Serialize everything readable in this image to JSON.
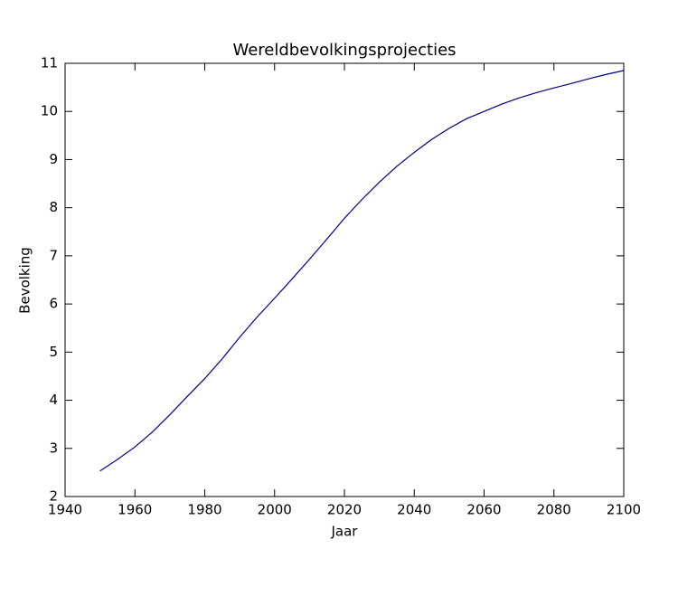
{
  "chart_data": {
    "type": "line",
    "title": "Wereldbevolkingsprojecties",
    "x_label": "Jaar",
    "y_label": "Bevolking",
    "x": [
      1950,
      1955,
      1960,
      1965,
      1970,
      1975,
      1980,
      1985,
      1990,
      1995,
      2000,
      2005,
      2010,
      2015,
      2020,
      2025,
      2030,
      2035,
      2040,
      2045,
      2050,
      2055,
      2060,
      2065,
      2070,
      2075,
      2080,
      2085,
      2090,
      2095,
      2100
    ],
    "series": [
      {
        "name": "Bevolking",
        "color": "#00008b",
        "values": [
          2.53,
          2.77,
          3.03,
          3.34,
          3.7,
          4.08,
          4.45,
          4.86,
          5.31,
          5.73,
          6.12,
          6.52,
          6.93,
          7.35,
          7.78,
          8.17,
          8.53,
          8.86,
          9.15,
          9.42,
          9.65,
          9.85,
          10.0,
          10.15,
          10.28,
          10.39,
          10.49,
          10.58,
          10.68,
          10.77,
          10.85
        ]
      }
    ],
    "xlim": [
      1940,
      2100
    ],
    "xticks": [
      1940,
      1960,
      1980,
      2000,
      2020,
      2040,
      2060,
      2080,
      2100
    ],
    "ylim": [
      2,
      11
    ],
    "yticks": [
      2,
      3,
      4,
      5,
      6,
      7,
      8,
      9,
      10,
      11
    ]
  }
}
